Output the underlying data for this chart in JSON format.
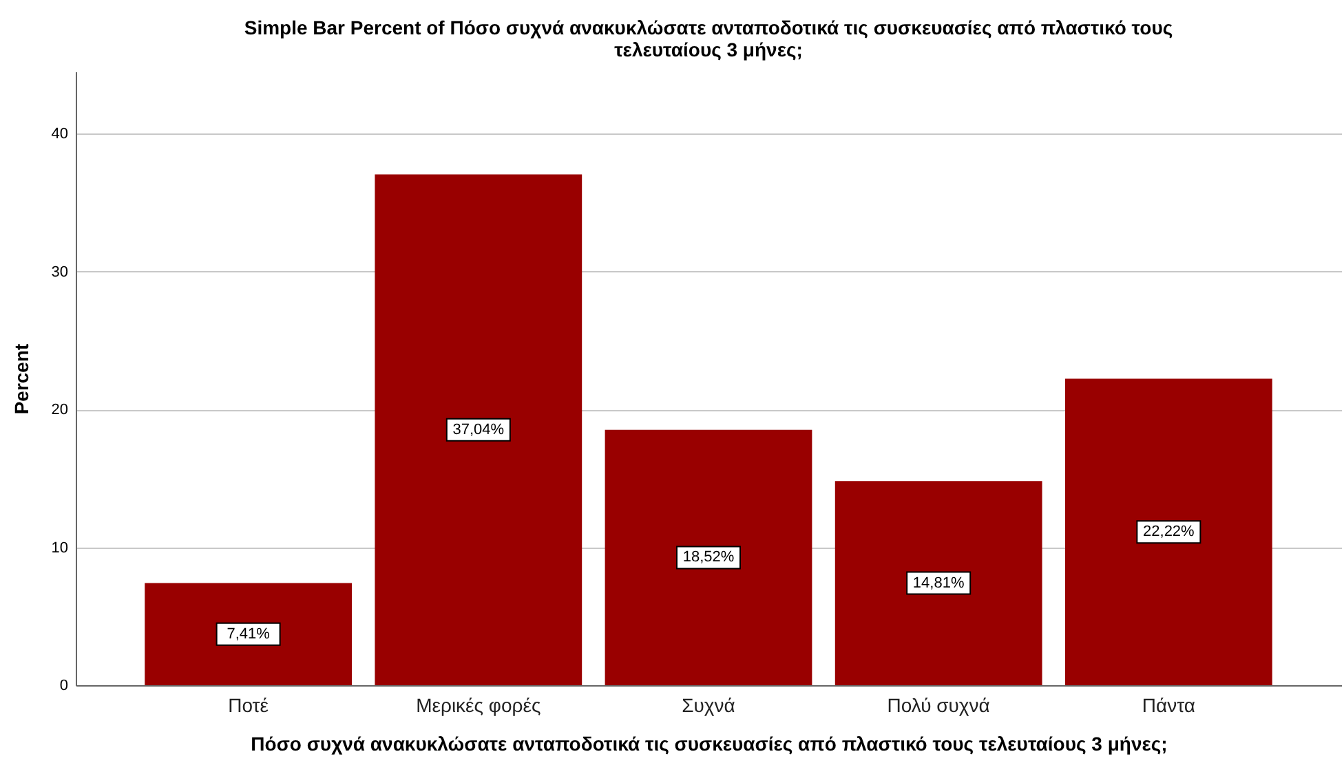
{
  "chart_data": {
    "type": "bar",
    "title": "Simple Bar Percent of Πόσο συχνά ανακυκλώσατε ανταποδοτικά τις συσκευασίες από πλαστικό τους τελευταίους 3 μήνες;",
    "xlabel": "Πόσο συχνά ανακυκλώσατε ανταποδοτικά τις συσκευασίες από πλαστικό  τους τελευταίους 3 μήνες;",
    "ylabel": "Percent",
    "categories": [
      "Ποτέ",
      "Μερικές φορές",
      "Συχνά",
      "Πολύ συχνά",
      "Πάντα"
    ],
    "values": [
      7.41,
      37.04,
      18.52,
      14.81,
      22.22
    ],
    "value_labels": [
      "7,41%",
      "37,04%",
      "18,52%",
      "14,81%",
      "22,22%"
    ],
    "color": "#990000",
    "ylim": [
      0,
      44.5
    ],
    "yticks": [
      0,
      10,
      20,
      30,
      40
    ],
    "grid": "y"
  }
}
